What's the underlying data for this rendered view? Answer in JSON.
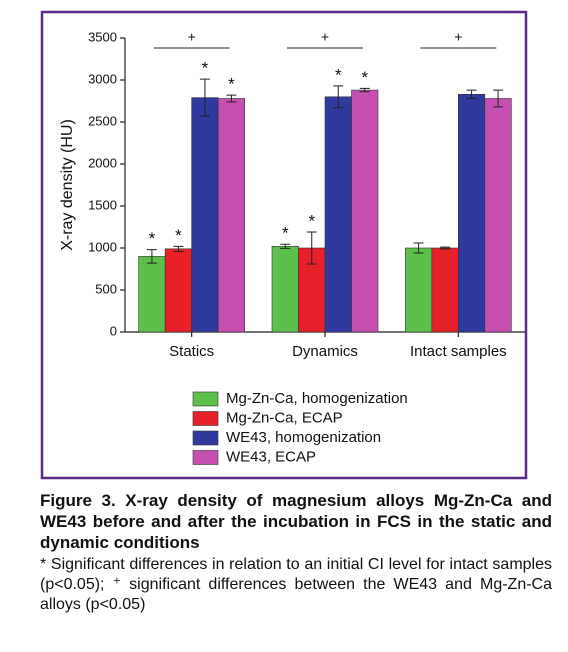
{
  "chart_data": {
    "type": "bar",
    "y_label": "X-ray density (HU)",
    "categories": [
      "Statics",
      "Dynamics",
      "Intact samples"
    ],
    "series": [
      {
        "name": "Mg-Zn-Ca, homogenization",
        "color": "#5cc04a",
        "values": [
          900,
          1020,
          1000
        ],
        "errors": [
          80,
          25,
          60
        ],
        "markers": [
          "*",
          "*",
          null
        ]
      },
      {
        "name": "Mg-Zn-Ca, ECAP",
        "color": "#e8202a",
        "values": [
          990,
          1000,
          1000
        ],
        "errors": [
          30,
          190,
          10
        ],
        "markers": [
          "*",
          "*",
          null
        ]
      },
      {
        "name": "WE43, homogenization",
        "color": "#2e3a9e",
        "values": [
          2790,
          2800,
          2830
        ],
        "errors": [
          220,
          130,
          50
        ],
        "markers": [
          "*",
          "*",
          null
        ]
      },
      {
        "name": "WE43, ECAP",
        "color": "#c550b2",
        "values": [
          2780,
          2880,
          2780
        ],
        "errors": [
          40,
          20,
          100
        ],
        "markers": [
          "*",
          "*",
          null
        ]
      }
    ],
    "group_annotations": [
      "+",
      "+",
      "+"
    ],
    "ylim": [
      0,
      3500
    ],
    "yticks": [
      0,
      500,
      1000,
      1500,
      2000,
      2500,
      3000,
      3500
    ]
  },
  "caption": {
    "title": "Figure 3. X-ray density of magnesium alloys Mg-Zn-Ca and WE43 before and after the incubation in FCS in the static and dynamic conditions",
    "note": "* Significant differences in relation to an initial CI level for intact samples (p<0.05); ⁺ significant differences between the WE43 and Mg-Zn-Ca alloys (p<0.05)"
  }
}
